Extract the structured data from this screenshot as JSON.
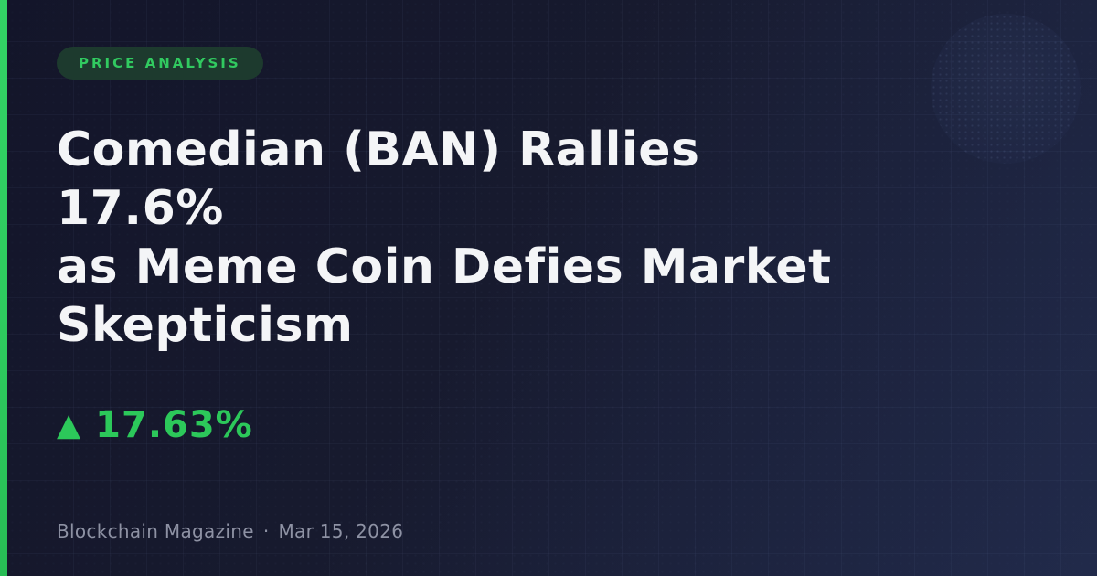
{
  "theme": {
    "accent_green": "#2ecb5f",
    "badge_background": "#1d3a2e",
    "badge_text_color": "#31ca60",
    "headline_color": "#f4f5f7",
    "gain_color": "#2cc85a",
    "byline_color": "#8e92a4",
    "background_dark": "#13152a",
    "background_light": "#1d2440"
  },
  "badge": {
    "label": "PRICE ANALYSIS"
  },
  "headline": {
    "lines": [
      "Comedian (BAN) Rallies 17.6%",
      "as Meme Coin Defies Market",
      "Skepticism"
    ]
  },
  "gain": {
    "direction_icon": "▲",
    "value": "17.63%"
  },
  "byline": {
    "publication": "Blockchain Magazine",
    "separator": "·",
    "date": "Mar 15, 2026"
  }
}
